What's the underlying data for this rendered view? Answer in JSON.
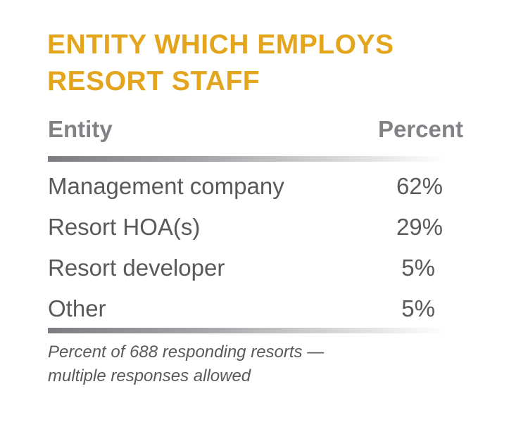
{
  "title": {
    "line1": "ENTITY WHICH EMPLOYS",
    "line2": "RESORT STAFF"
  },
  "table": {
    "col_entity": "Entity",
    "col_percent": "Percent",
    "rows": [
      {
        "label": "Management company",
        "value": "62%"
      },
      {
        "label": "Resort HOA(s)",
        "value": "29%"
      },
      {
        "label": "Resort developer",
        "value": "5%"
      },
      {
        "label": "Other",
        "value": "5%"
      }
    ]
  },
  "note": {
    "line1": "Percent of 688 responding resorts —",
    "line2": "multiple responses allowed"
  },
  "colors": {
    "title": "#e3a51d",
    "header": "#808285",
    "body_text": "#58595b",
    "rule": "#7b7d80"
  },
  "chart_data": {
    "type": "table",
    "title": "ENTITY WHICH EMPLOYS RESORT STAFF",
    "columns": [
      "Entity",
      "Percent"
    ],
    "categories": [
      "Management company",
      "Resort HOA(s)",
      "Resort developer",
      "Other"
    ],
    "values": [
      62,
      29,
      5,
      5
    ],
    "unit": "%",
    "note": "Percent of 688 responding resorts — multiple responses allowed"
  }
}
